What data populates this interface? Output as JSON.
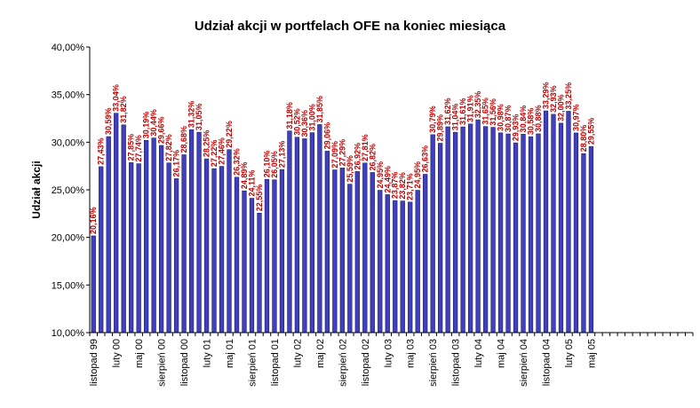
{
  "chart_data": {
    "type": "bar",
    "title": "Udział akcji w portfelach OFE na koniec miesiąca",
    "xlabel": "",
    "ylabel": "Udział akcji",
    "ylim": [
      10,
      40
    ],
    "yticks": [
      "10,00%",
      "15,00%",
      "20,00%",
      "25,00%",
      "30,00%",
      "35,00%",
      "40,00%"
    ],
    "bar_color": "#3f3fbf",
    "label_color": "#c00000",
    "grid": false,
    "total_slots": 80,
    "values": [
      20.16,
      27.43,
      30.59,
      33.04,
      31.82,
      27.85,
      27.74,
      30.19,
      30.44,
      29.66,
      27.82,
      26.17,
      28.68,
      31.32,
      31.05,
      28.25,
      27.22,
      27.46,
      29.22,
      26.32,
      24.89,
      24.11,
      22.55,
      26.1,
      26.05,
      27.13,
      31.18,
      30.52,
      30.36,
      31.0,
      31.85,
      29.06,
      27.09,
      27.29,
      25.59,
      26.92,
      27.81,
      26.82,
      24.95,
      24.49,
      23.87,
      23.82,
      23.71,
      24.95,
      26.63,
      30.79,
      29.89,
      31.62,
      31.04,
      31.61,
      31.91,
      32.35,
      31.65,
      31.56,
      30.98,
      30.87,
      29.93,
      30.84,
      30.58,
      30.88,
      33.29,
      32.93,
      32.0,
      33.25,
      30.97,
      28.8,
      29.55
    ],
    "labels": [
      "20,16%",
      "27,43%",
      "30,59%",
      "33,04%",
      "31,82%",
      "27,85%",
      "27,74%",
      "30,19%",
      "30,44%",
      "29,66%",
      "27,82%",
      "26,17%",
      "28,68%",
      "31,32%",
      "31,05%",
      "28,25%",
      "27,22%",
      "27,46%",
      "29,22%",
      "26,32%",
      "24,89%",
      "24,11%",
      "22,55%",
      "26,10%",
      "26,05%",
      "27,13%",
      "31,18%",
      "30,52%",
      "30,36%",
      "31,00%",
      "31,85%",
      "29,06%",
      "27,09%",
      "27,29%",
      "25,59%",
      "26,92%",
      "27,81%",
      "26,82%",
      "24,95%",
      "24,49%",
      "23,87%",
      "23,82%",
      "23,71%",
      "24,95%",
      "26,63%",
      "30,79%",
      "29,89%",
      "31,62%",
      "31,04%",
      "31,61%",
      "31,91%",
      "32,35%",
      "31,65%",
      "31,56%",
      "30,98%",
      "30,87%",
      "29,93%",
      "30,84%",
      "30,58%",
      "30,88%",
      "33,29%",
      "32,93%",
      "32,00%",
      "33,25%",
      "30,97%",
      "28,80%",
      "29,55%"
    ],
    "xtick_labels": [
      {
        "index": 0,
        "text": "listopad 99"
      },
      {
        "index": 3,
        "text": "luty 00"
      },
      {
        "index": 6,
        "text": "maj 00"
      },
      {
        "index": 9,
        "text": "sierpień 00"
      },
      {
        "index": 12,
        "text": "listopad 00"
      },
      {
        "index": 15,
        "text": "luty 01"
      },
      {
        "index": 18,
        "text": "maj 01"
      },
      {
        "index": 21,
        "text": "sierpień 01"
      },
      {
        "index": 24,
        "text": "listopad 01"
      },
      {
        "index": 27,
        "text": "luty 02"
      },
      {
        "index": 30,
        "text": "maj 02"
      },
      {
        "index": 33,
        "text": "sierpień 02"
      },
      {
        "index": 36,
        "text": "listopad 02"
      },
      {
        "index": 39,
        "text": "luty 03"
      },
      {
        "index": 42,
        "text": "maj 03"
      },
      {
        "index": 45,
        "text": "sierpień 03"
      },
      {
        "index": 48,
        "text": "listopad 03"
      },
      {
        "index": 51,
        "text": "luty 04"
      },
      {
        "index": 54,
        "text": "maj 04"
      },
      {
        "index": 57,
        "text": "sierpień 04"
      },
      {
        "index": 60,
        "text": "listopad 04"
      },
      {
        "index": 63,
        "text": "luty 05"
      },
      {
        "index": 66,
        "text": "maj 05"
      }
    ]
  }
}
